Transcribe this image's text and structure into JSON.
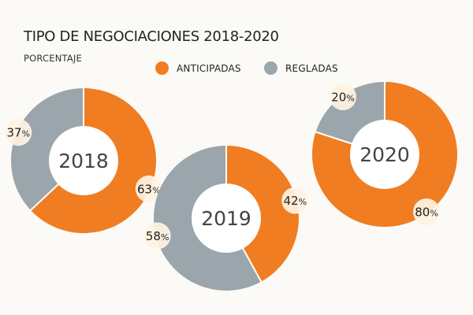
{
  "colors": {
    "anticipadas": "#f07d22",
    "regladas": "#9aa5ac",
    "center": "#ffffff",
    "label_bg": "#fff3e2"
  },
  "title": "TIPO DE NEGOCIACIONES 2018-2020",
  "subtitle": "PORCENTAJE",
  "chart_data": {
    "type": "pie",
    "title": "TIPO DE NEGOCIACIONES 2018-2020",
    "subtitle": "PORCENTAJE",
    "unit": "%",
    "legend": [
      "ANTICIPADAS",
      "REGLADAS"
    ],
    "legend_position": "top",
    "charts": [
      {
        "year": "2018",
        "anticipadas": 63,
        "regladas": 37
      },
      {
        "year": "2019",
        "anticipadas": 42,
        "regladas": 58
      },
      {
        "year": "2020",
        "anticipadas": 80,
        "regladas": 20
      }
    ]
  }
}
